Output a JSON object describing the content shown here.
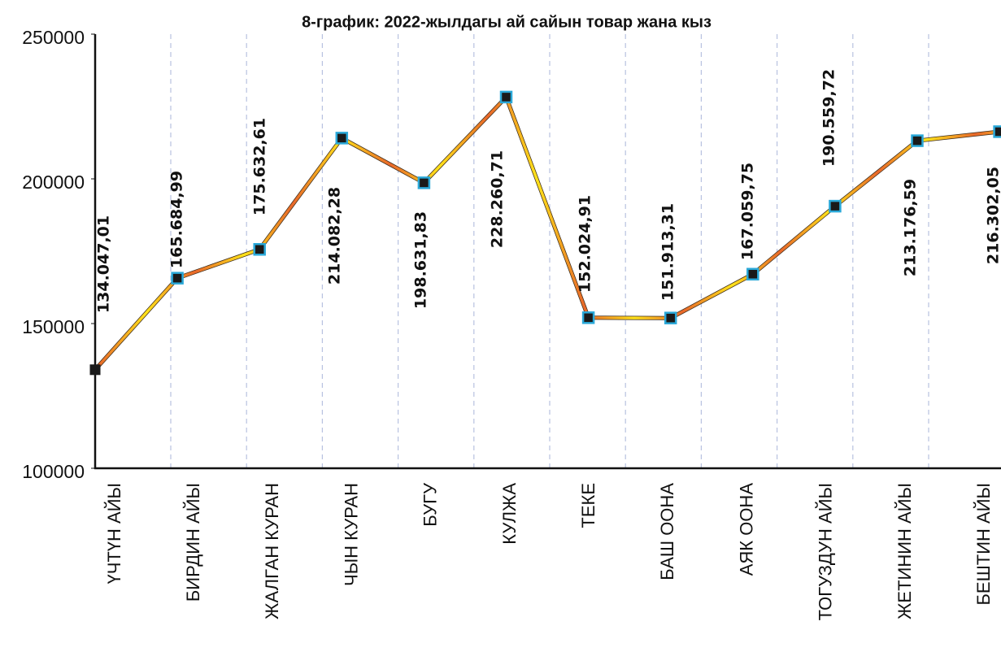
{
  "chart_data": {
    "type": "line",
    "title": "8-график: 2022-жылдагы ай сайын товар жана кыз",
    "categories": [
      "ҮЧТҮН АЙЫ",
      "БИРДИН АЙЫ",
      "ЖАЛГАН КУРАН",
      "ЧЫН КУРАН",
      "БУГУ",
      "КУЛЖА",
      "ТЕКЕ",
      "БАШ ООНА",
      "АЯК ООНА",
      "ТОГУЗДУН АЙЫ",
      "ЖЕТИНИН АЙЫ",
      "БЕШТИН АЙЫ"
    ],
    "values": [
      134047.01,
      165684.99,
      175632.61,
      214082.28,
      198631.83,
      228260.71,
      152024.91,
      151913.31,
      167059.75,
      190559.72,
      213176.59,
      216302.05
    ],
    "value_labels": [
      "134.047,01",
      "165.684,99",
      "175.632,61",
      "214.082,28",
      "198.631,83",
      "228.260,71",
      "152.024,91",
      "151.913,31",
      "167.059,75",
      "190.559,72",
      "213.176,59",
      "216.302,05"
    ],
    "ylim": [
      100000,
      250000
    ],
    "yticks": [
      100000,
      150000,
      200000,
      250000
    ]
  }
}
